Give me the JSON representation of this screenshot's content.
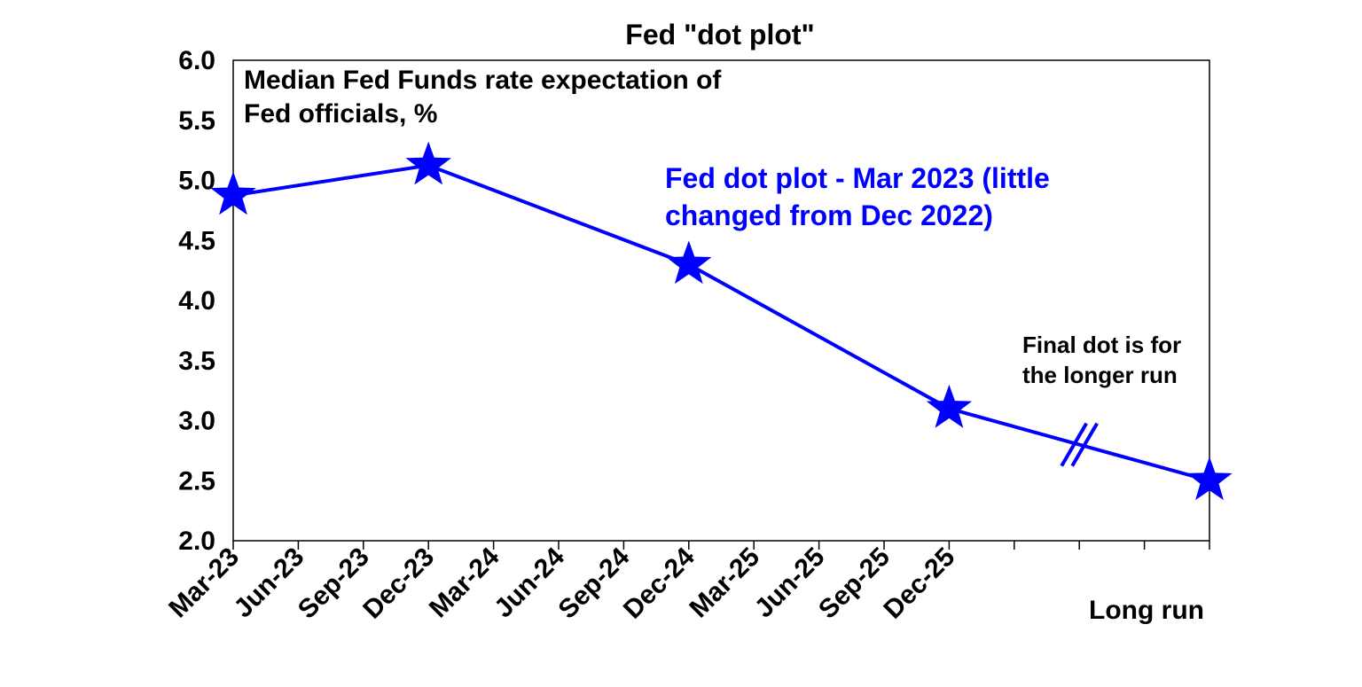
{
  "chart_data": {
    "type": "line",
    "title": "Fed \"dot plot\"",
    "xlabel": "",
    "ylabel": "",
    "categories": [
      "Mar-23",
      "Jun-23",
      "Sep-23",
      "Dec-23",
      "Mar-24",
      "Jun-24",
      "Sep-24",
      "Dec-24",
      "Mar-25",
      "Jun-25",
      "Sep-25",
      "Dec-25",
      "",
      "",
      "",
      "Long run"
    ],
    "ylim": [
      2.0,
      6.0
    ],
    "yticks": [
      "2.0",
      "2.5",
      "3.0",
      "3.5",
      "4.0",
      "4.5",
      "5.0",
      "5.5",
      "6.0"
    ],
    "grid": false,
    "series": [
      {
        "color": "#0000ff",
        "marker": "star",
        "points": [
          {
            "x": "Mar-23",
            "y": 4.875
          },
          {
            "x": "Dec-23",
            "y": 5.125
          },
          {
            "x": "Dec-24",
            "y": 4.3
          },
          {
            "x": "Dec-25",
            "y": 3.1
          },
          {
            "x": "Long run",
            "y": 2.5
          }
        ]
      }
    ],
    "annotations": {
      "axis_note_line1": "Median Fed Funds rate expectation of",
      "axis_note_line2": "Fed officials, %",
      "series_note_line1": "Fed dot plot - Mar 2023 (little",
      "series_note_line2": "changed from Dec 2022)",
      "long_run_note_line1": "Final dot is for",
      "long_run_note_line2": "the longer run",
      "long_run_label": "Long run"
    },
    "axis_break": true
  }
}
